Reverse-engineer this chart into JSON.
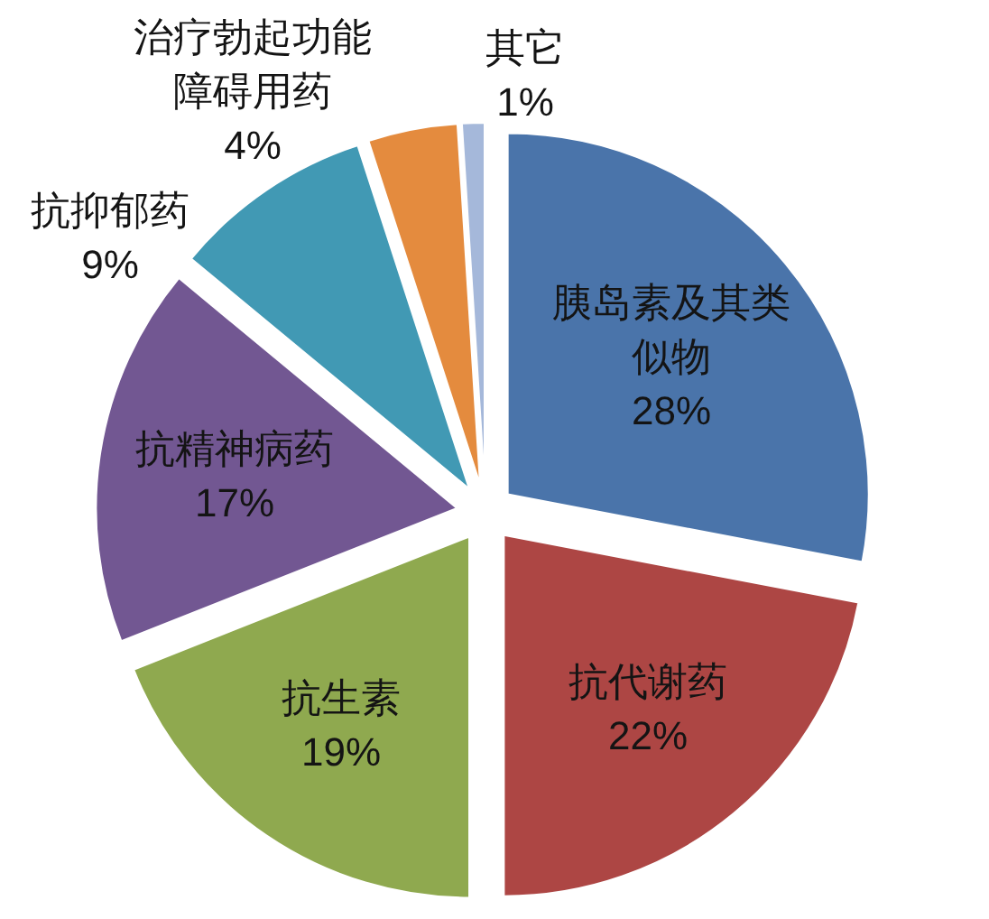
{
  "chart_data": {
    "type": "pie",
    "categories": [
      "胰岛素及其类似物",
      "抗代谢药",
      "抗生素",
      "抗精神病药",
      "抗抑郁药",
      "治疗勃起功能障碍用药",
      "其它"
    ],
    "values": [
      28,
      22,
      19,
      17,
      9,
      4,
      1
    ],
    "value_labels": [
      "28%",
      "22%",
      "19%",
      "17%",
      "9%",
      "4%",
      "1%"
    ],
    "colors": [
      "#4a74aa",
      "#ad4644",
      "#8fa94f",
      "#725792",
      "#4199b4",
      "#e48b3e",
      "#a5b8da"
    ]
  }
}
